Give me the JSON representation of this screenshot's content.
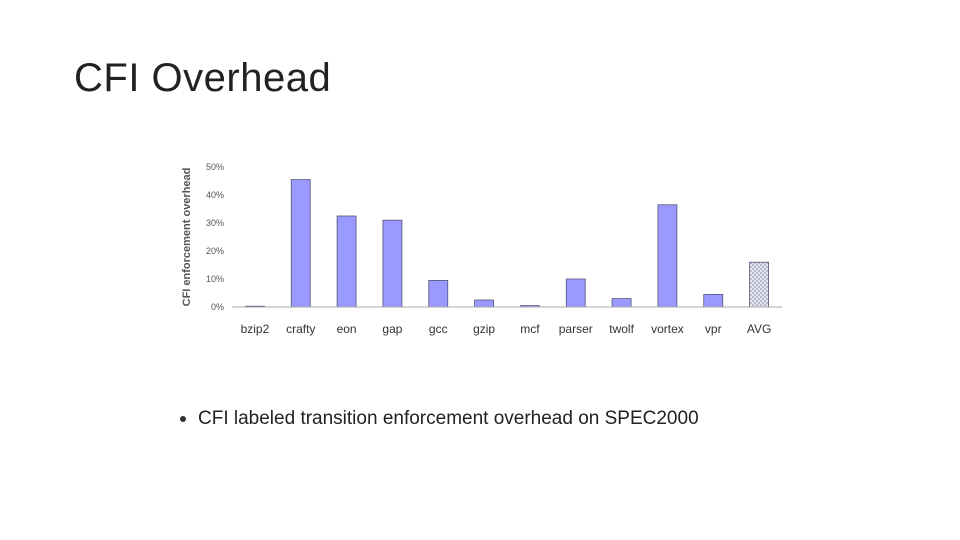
{
  "slide": {
    "title": "CFI Overhead",
    "bullet": "CFI labeled transition enforcement overhead on SPEC2000"
  },
  "colors": {
    "bar_fill": "#9999ff",
    "bar_stroke": "#555577",
    "avg_fill": "#d8d8e8",
    "axis": "#888888"
  },
  "chart_data": {
    "type": "bar",
    "title": "",
    "xlabel": "",
    "ylabel": "CFI enforcement overhead",
    "ylim": [
      0,
      50
    ],
    "yticks": [
      "0%",
      "10%",
      "20%",
      "30%",
      "40%",
      "50%"
    ],
    "categories": [
      "bzip2",
      "crafty",
      "eon",
      "gap",
      "gcc",
      "gzip",
      "mcf",
      "parser",
      "twolf",
      "vortex",
      "vpr",
      "AVG"
    ],
    "values": [
      0,
      45.5,
      32.5,
      31,
      9.5,
      2.5,
      0.5,
      10,
      3,
      36.5,
      4.5,
      16
    ],
    "highlight_last": true,
    "grid": false
  }
}
